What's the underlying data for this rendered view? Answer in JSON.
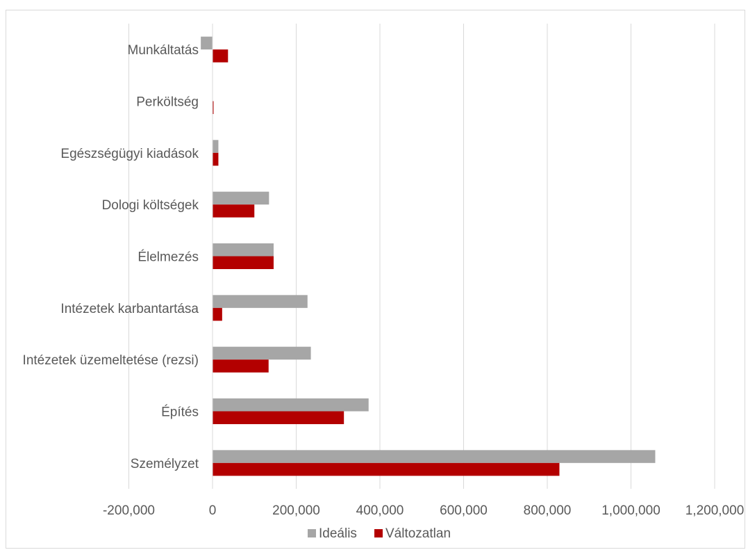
{
  "chart_data": {
    "type": "bar",
    "orientation": "horizontal",
    "title": "",
    "xlabel": "",
    "ylabel": "",
    "categories": [
      "Munkáltatás",
      "Perköltség",
      "Egészségügyi kiadások",
      "Dologi költségek",
      "Élelmezés",
      "Intézetek karbantartása",
      "Intézetek üzemeltetése (rezsi)",
      "Építés",
      "Személyzet"
    ],
    "series": [
      {
        "name": "Ideális",
        "color": "#a6a6a6",
        "values": [
          -28000,
          0,
          14000,
          135000,
          146000,
          227000,
          235000,
          373000,
          1058000
        ]
      },
      {
        "name": "Változatlan",
        "color": "#b30000",
        "values": [
          37000,
          2000,
          14000,
          100000,
          146000,
          23000,
          134000,
          314000,
          829000
        ]
      }
    ],
    "xlim": [
      -200000,
      1200000
    ],
    "xticks": [
      -200000,
      0,
      200000,
      400000,
      600000,
      800000,
      1000000,
      1200000
    ],
    "xtick_labels": [
      "-200,000",
      "0",
      "200,000",
      "400,000",
      "600,000",
      "800,000",
      "1,000,000",
      "1,200,000"
    ],
    "grid": true,
    "legend": "bottom"
  }
}
